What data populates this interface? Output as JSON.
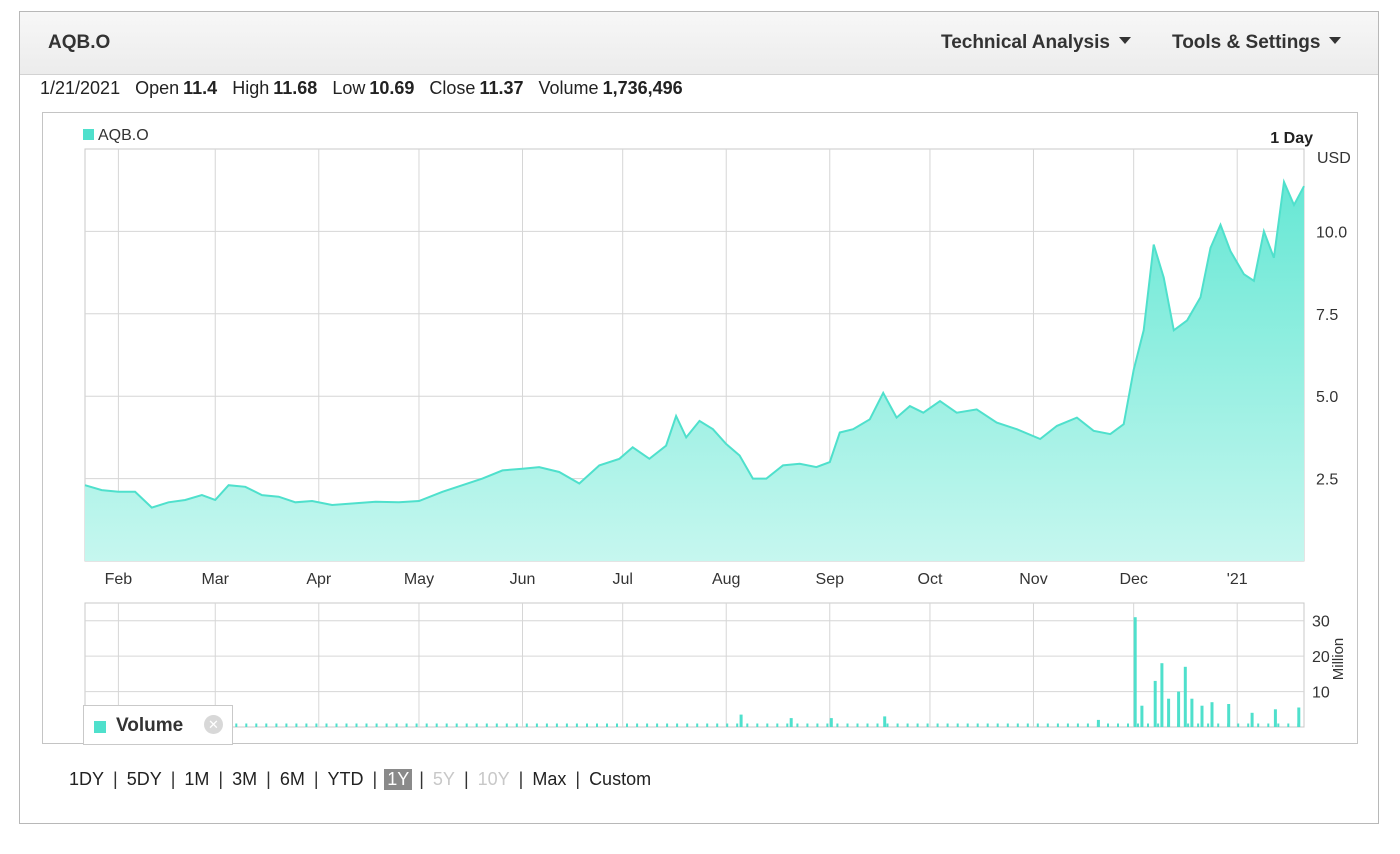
{
  "header": {
    "symbol": "AQB.O",
    "technical_analysis": "Technical Analysis",
    "tools_settings": "Tools & Settings"
  },
  "quote": {
    "date": "1/21/2021",
    "open_label": "Open",
    "open": "11.4",
    "high_label": "High",
    "high": "11.68",
    "low_label": "Low",
    "low": "10.69",
    "close_label": "Close",
    "close": "11.37",
    "volume_label": "Volume",
    "volume": "1,736,496"
  },
  "colors": {
    "series": "#4fe0cc",
    "fill_top": "#5ee6d2",
    "fill_bottom": "#c6f7ef",
    "grid": "#d6d6d6"
  },
  "ranges": [
    {
      "label": "1DY",
      "state": "normal"
    },
    {
      "label": "5DY",
      "state": "normal"
    },
    {
      "label": "1M",
      "state": "normal"
    },
    {
      "label": "3M",
      "state": "normal"
    },
    {
      "label": "6M",
      "state": "normal"
    },
    {
      "label": "YTD",
      "state": "normal"
    },
    {
      "label": "1Y",
      "state": "active"
    },
    {
      "label": "5Y",
      "state": "disabled"
    },
    {
      "label": "10Y",
      "state": "disabled"
    },
    {
      "label": "Max",
      "state": "normal"
    },
    {
      "label": "Custom",
      "state": "normal"
    }
  ],
  "chart_data": [
    {
      "type": "area",
      "legend": "AQB.O",
      "legend_position": "top-left",
      "interval_label": "1 Day",
      "unit_label": "USD",
      "ylim": [
        0,
        12.5
      ],
      "yticks": [
        2.5,
        5.0,
        7.5,
        10.0
      ],
      "ytick_labels": [
        "2.5",
        "5.0",
        "7.5",
        "10.0"
      ],
      "grid": true,
      "x_start": "2020-01-22",
      "x_end": "2021-01-21",
      "xtick_dates": [
        "2020-02-01",
        "2020-03-01",
        "2020-04-01",
        "2020-05-01",
        "2020-06-01",
        "2020-07-01",
        "2020-08-01",
        "2020-09-01",
        "2020-10-01",
        "2020-11-01",
        "2020-12-01",
        "2021-01-01"
      ],
      "xtick_labels": [
        "Feb",
        "Mar",
        "Apr",
        "May",
        "Jun",
        "Jul",
        "Aug",
        "Sep",
        "Oct",
        "Nov",
        "Dec",
        "'21"
      ],
      "points": [
        [
          "2020-01-22",
          2.3
        ],
        [
          "2020-01-27",
          2.15
        ],
        [
          "2020-02-01",
          2.1
        ],
        [
          "2020-02-06",
          2.1
        ],
        [
          "2020-02-11",
          1.62
        ],
        [
          "2020-02-16",
          1.78
        ],
        [
          "2020-02-21",
          1.85
        ],
        [
          "2020-02-26",
          2.0
        ],
        [
          "2020-03-01",
          1.85
        ],
        [
          "2020-03-05",
          2.3
        ],
        [
          "2020-03-10",
          2.25
        ],
        [
          "2020-03-15",
          2.0
        ],
        [
          "2020-03-20",
          1.95
        ],
        [
          "2020-03-25",
          1.78
        ],
        [
          "2020-03-30",
          1.82
        ],
        [
          "2020-04-05",
          1.7
        ],
        [
          "2020-04-12",
          1.75
        ],
        [
          "2020-04-18",
          1.8
        ],
        [
          "2020-04-25",
          1.78
        ],
        [
          "2020-05-01",
          1.82
        ],
        [
          "2020-05-08",
          2.1
        ],
        [
          "2020-05-14",
          2.3
        ],
        [
          "2020-05-20",
          2.5
        ],
        [
          "2020-05-26",
          2.75
        ],
        [
          "2020-06-01",
          2.8
        ],
        [
          "2020-06-06",
          2.85
        ],
        [
          "2020-06-12",
          2.7
        ],
        [
          "2020-06-18",
          2.35
        ],
        [
          "2020-06-24",
          2.9
        ],
        [
          "2020-06-30",
          3.1
        ],
        [
          "2020-07-04",
          3.45
        ],
        [
          "2020-07-09",
          3.1
        ],
        [
          "2020-07-14",
          3.5
        ],
        [
          "2020-07-17",
          4.4
        ],
        [
          "2020-07-20",
          3.75
        ],
        [
          "2020-07-24",
          4.25
        ],
        [
          "2020-07-28",
          4.0
        ],
        [
          "2020-08-01",
          3.55
        ],
        [
          "2020-08-05",
          3.2
        ],
        [
          "2020-08-09",
          2.5
        ],
        [
          "2020-08-13",
          2.5
        ],
        [
          "2020-08-18",
          2.9
        ],
        [
          "2020-08-23",
          2.95
        ],
        [
          "2020-08-28",
          2.85
        ],
        [
          "2020-09-01",
          3.0
        ],
        [
          "2020-09-04",
          3.9
        ],
        [
          "2020-09-08",
          4.0
        ],
        [
          "2020-09-13",
          4.3
        ],
        [
          "2020-09-17",
          5.1
        ],
        [
          "2020-09-21",
          4.35
        ],
        [
          "2020-09-25",
          4.7
        ],
        [
          "2020-09-29",
          4.5
        ],
        [
          "2020-10-04",
          4.85
        ],
        [
          "2020-10-09",
          4.5
        ],
        [
          "2020-10-15",
          4.6
        ],
        [
          "2020-10-21",
          4.2
        ],
        [
          "2020-10-27",
          4.0
        ],
        [
          "2020-11-03",
          3.7
        ],
        [
          "2020-11-08",
          4.1
        ],
        [
          "2020-11-14",
          4.35
        ],
        [
          "2020-11-19",
          3.95
        ],
        [
          "2020-11-24",
          3.85
        ],
        [
          "2020-11-28",
          4.15
        ],
        [
          "2020-12-01",
          5.8
        ],
        [
          "2020-12-04",
          7.0
        ],
        [
          "2020-12-07",
          9.6
        ],
        [
          "2020-12-10",
          8.6
        ],
        [
          "2020-12-13",
          7.0
        ],
        [
          "2020-12-17",
          7.3
        ],
        [
          "2020-12-21",
          8.0
        ],
        [
          "2020-12-24",
          9.5
        ],
        [
          "2020-12-27",
          10.2
        ],
        [
          "2020-12-30",
          9.4
        ],
        [
          "2021-01-03",
          8.7
        ],
        [
          "2021-01-06",
          8.5
        ],
        [
          "2021-01-09",
          10.0
        ],
        [
          "2021-01-12",
          9.2
        ],
        [
          "2021-01-15",
          11.5
        ],
        [
          "2021-01-18",
          10.8
        ],
        [
          "2021-01-21",
          11.37
        ]
      ]
    },
    {
      "type": "bar",
      "legend": "Volume",
      "unit_label": "Million",
      "ylim": [
        0,
        35
      ],
      "yticks": [
        10,
        20,
        30
      ],
      "ytick_labels": [
        "10",
        "20",
        "30"
      ],
      "spikes": [
        [
          "2020-08-05",
          3.5
        ],
        [
          "2020-08-20",
          2.5
        ],
        [
          "2020-09-01",
          2.5
        ],
        [
          "2020-09-17",
          3.0
        ],
        [
          "2020-11-20",
          2.0
        ],
        [
          "2020-12-01",
          31.0
        ],
        [
          "2020-12-03",
          6.0
        ],
        [
          "2020-12-07",
          13.0
        ],
        [
          "2020-12-09",
          18.0
        ],
        [
          "2020-12-11",
          8.0
        ],
        [
          "2020-12-14",
          10.0
        ],
        [
          "2020-12-16",
          17.0
        ],
        [
          "2020-12-18",
          8.0
        ],
        [
          "2020-12-21",
          6.0
        ],
        [
          "2020-12-24",
          7.0
        ],
        [
          "2020-12-29",
          6.5
        ],
        [
          "2021-01-05",
          4.0
        ],
        [
          "2021-01-12",
          5.0
        ],
        [
          "2021-01-19",
          5.5
        ]
      ],
      "base_volume": 1.0
    }
  ]
}
